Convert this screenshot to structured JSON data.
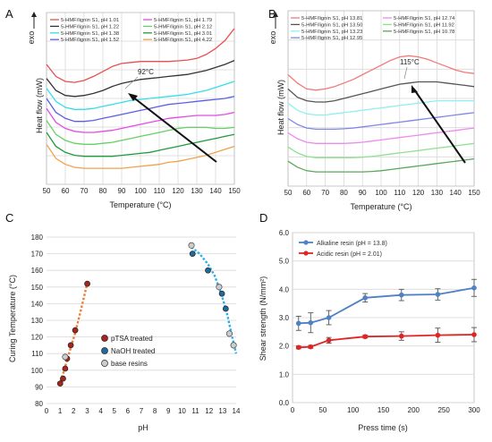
{
  "chart_data": [
    {
      "panel": "A",
      "type": "line",
      "xlabel": "Temperature (°C)",
      "ylabel": "Heat flow (mW)",
      "exo_label": "exo",
      "xlim": [
        50,
        150
      ],
      "xticks": [
        50,
        60,
        70,
        80,
        90,
        100,
        110,
        120,
        130,
        140,
        150
      ],
      "annotation": "92°C",
      "series": [
        {
          "name": "5-HMF/lignin S1, pH 1.01",
          "color": "#e8504f",
          "x": [
            50,
            55,
            60,
            65,
            70,
            75,
            80,
            85,
            90,
            95,
            100,
            105,
            110,
            115,
            120,
            125,
            130,
            135,
            140,
            145,
            150
          ],
          "y": [
            8.6,
            8.0,
            7.75,
            7.7,
            7.8,
            8.0,
            8.25,
            8.5,
            8.65,
            8.7,
            8.75,
            8.75,
            8.75,
            8.75,
            8.78,
            8.82,
            8.9,
            9.1,
            9.4,
            9.8,
            10.4
          ]
        },
        {
          "name": "5-HMF/lignin S1, pH 1.22",
          "color": "#333333",
          "x": [
            50,
            55,
            60,
            65,
            70,
            75,
            80,
            85,
            90,
            95,
            100,
            105,
            110,
            115,
            120,
            125,
            130,
            135,
            140,
            145,
            150
          ],
          "y": [
            7.9,
            7.3,
            7.05,
            7.0,
            7.05,
            7.15,
            7.3,
            7.5,
            7.65,
            7.75,
            7.85,
            7.9,
            7.95,
            8.0,
            8.05,
            8.1,
            8.2,
            8.3,
            8.45,
            8.6,
            8.8
          ]
        },
        {
          "name": "5-HMF/lignin S1, pH 1.38",
          "color": "#33dfe8",
          "x": [
            50,
            55,
            60,
            65,
            70,
            75,
            80,
            85,
            90,
            95,
            100,
            105,
            110,
            115,
            120,
            125,
            130,
            135,
            140,
            145,
            150
          ],
          "y": [
            7.4,
            6.75,
            6.45,
            6.35,
            6.35,
            6.4,
            6.5,
            6.6,
            6.7,
            6.8,
            6.85,
            6.9,
            6.95,
            7.0,
            7.05,
            7.1,
            7.2,
            7.3,
            7.45,
            7.6,
            7.75
          ]
        },
        {
          "name": "5-HMF/lignin S1, pH 1.52",
          "color": "#5a5fe6",
          "x": [
            50,
            55,
            60,
            65,
            70,
            75,
            80,
            85,
            90,
            95,
            100,
            105,
            110,
            115,
            120,
            125,
            130,
            135,
            140,
            145,
            150
          ],
          "y": [
            6.9,
            6.2,
            5.9,
            5.75,
            5.75,
            5.8,
            5.9,
            6.0,
            6.1,
            6.2,
            6.3,
            6.4,
            6.5,
            6.6,
            6.65,
            6.7,
            6.75,
            6.8,
            6.85,
            6.9,
            7.0
          ]
        },
        {
          "name": "5-HMF/lignin S1, pH 1.79",
          "color": "#e44ae4",
          "x": [
            50,
            55,
            60,
            65,
            70,
            75,
            80,
            85,
            90,
            95,
            100,
            105,
            110,
            115,
            120,
            125,
            130,
            135,
            140,
            145,
            150
          ],
          "y": [
            6.4,
            5.7,
            5.4,
            5.25,
            5.2,
            5.2,
            5.25,
            5.3,
            5.4,
            5.5,
            5.6,
            5.7,
            5.8,
            5.9,
            5.95,
            6.0,
            6.05,
            6.05,
            6.05,
            6.1,
            6.2
          ]
        },
        {
          "name": "5-HMF/lignin S1, pH 2.12",
          "color": "#66cf66",
          "x": [
            50,
            55,
            60,
            65,
            70,
            75,
            80,
            85,
            90,
            95,
            100,
            105,
            110,
            115,
            120,
            125,
            130,
            135,
            140,
            145,
            150
          ],
          "y": [
            5.8,
            5.1,
            4.8,
            4.65,
            4.6,
            4.6,
            4.65,
            4.7,
            4.8,
            4.9,
            5.0,
            5.1,
            5.2,
            5.3,
            5.4,
            5.45,
            5.45,
            5.45,
            5.4,
            5.4,
            5.45
          ]
        },
        {
          "name": "5-HMF/lignin S1, pH 3.01",
          "color": "#229a3c",
          "x": [
            50,
            55,
            60,
            65,
            70,
            75,
            80,
            85,
            90,
            95,
            100,
            105,
            110,
            115,
            120,
            125,
            130,
            135,
            140,
            145,
            150
          ],
          "y": [
            5.2,
            4.5,
            4.2,
            4.05,
            4.0,
            4.0,
            4.0,
            4.0,
            4.05,
            4.1,
            4.15,
            4.2,
            4.3,
            4.4,
            4.5,
            4.6,
            4.7,
            4.8,
            4.9,
            5.0,
            5.1
          ]
        },
        {
          "name": "5-HMF/lignin S1, pH 4.22",
          "color": "#f0a24a",
          "x": [
            50,
            55,
            60,
            65,
            70,
            75,
            80,
            85,
            90,
            95,
            100,
            105,
            110,
            115,
            120,
            125,
            130,
            135,
            140,
            145,
            150
          ],
          "y": [
            4.6,
            3.9,
            3.6,
            3.45,
            3.4,
            3.4,
            3.4,
            3.4,
            3.4,
            3.45,
            3.5,
            3.55,
            3.6,
            3.7,
            3.75,
            3.85,
            3.95,
            4.05,
            4.2,
            4.35,
            4.5
          ]
        }
      ]
    },
    {
      "panel": "B",
      "type": "line",
      "xlabel": "Temperature (°C)",
      "ylabel": "Heat flow (mW)",
      "exo_label": "exo",
      "xlim": [
        50,
        150
      ],
      "xticks": [
        50,
        60,
        70,
        80,
        90,
        100,
        110,
        120,
        130,
        140,
        150
      ],
      "annotation": "115°C",
      "series": [
        {
          "name": "5-HMF/lignin S1, pH 13.81",
          "color": "#f07a7a",
          "x": [
            50,
            55,
            60,
            65,
            70,
            75,
            80,
            85,
            90,
            95,
            100,
            105,
            110,
            115,
            120,
            125,
            130,
            135,
            140,
            145,
            150
          ],
          "y": [
            8.9,
            8.55,
            8.3,
            8.25,
            8.3,
            8.4,
            8.55,
            8.7,
            8.9,
            9.1,
            9.3,
            9.5,
            9.65,
            9.7,
            9.65,
            9.55,
            9.4,
            9.25,
            9.1,
            9.0,
            8.95
          ]
        },
        {
          "name": "5-HMF/lignin S1, pH 13.50",
          "color": "#555555",
          "x": [
            50,
            55,
            60,
            65,
            70,
            75,
            80,
            85,
            90,
            95,
            100,
            105,
            110,
            115,
            120,
            125,
            130,
            135,
            140,
            145,
            150
          ],
          "y": [
            8.3,
            7.95,
            7.8,
            7.75,
            7.75,
            7.8,
            7.9,
            8.0,
            8.1,
            8.2,
            8.3,
            8.4,
            8.5,
            8.55,
            8.6,
            8.6,
            8.6,
            8.55,
            8.5,
            8.45,
            8.4
          ]
        },
        {
          "name": "5-HMF/lignin S1, pH 13.23",
          "color": "#8ff0f0",
          "x": [
            50,
            55,
            60,
            65,
            70,
            75,
            80,
            85,
            90,
            95,
            100,
            105,
            110,
            115,
            120,
            125,
            130,
            135,
            140,
            145,
            150
          ],
          "y": [
            7.7,
            7.4,
            7.25,
            7.2,
            7.2,
            7.25,
            7.3,
            7.35,
            7.4,
            7.45,
            7.5,
            7.55,
            7.6,
            7.65,
            7.7,
            7.75,
            7.8,
            7.8,
            7.8,
            7.8,
            7.8
          ]
        },
        {
          "name": "5-HMF/lignin S1, pH 12.95",
          "color": "#7f86e8",
          "x": [
            50,
            55,
            60,
            65,
            70,
            75,
            80,
            85,
            90,
            95,
            100,
            105,
            110,
            115,
            120,
            125,
            130,
            135,
            140,
            145,
            150
          ],
          "y": [
            7.05,
            6.8,
            6.65,
            6.6,
            6.6,
            6.6,
            6.62,
            6.65,
            6.7,
            6.75,
            6.8,
            6.85,
            6.9,
            6.95,
            7.0,
            7.05,
            7.1,
            7.15,
            7.2,
            7.25,
            7.3
          ]
        },
        {
          "name": "5-HMF/lignin S1, pH 12.74",
          "color": "#ee8aee",
          "x": [
            50,
            55,
            60,
            65,
            70,
            75,
            80,
            85,
            90,
            95,
            100,
            105,
            110,
            115,
            120,
            125,
            130,
            135,
            140,
            145,
            150
          ],
          "y": [
            6.45,
            6.2,
            6.05,
            6.0,
            6.0,
            6.0,
            6.0,
            6.02,
            6.05,
            6.1,
            6.15,
            6.2,
            6.25,
            6.3,
            6.35,
            6.4,
            6.45,
            6.5,
            6.55,
            6.6,
            6.65
          ]
        },
        {
          "name": "5-HMF/lignin S1, pH 11.92",
          "color": "#8fe08f",
          "x": [
            50,
            55,
            60,
            65,
            70,
            75,
            80,
            85,
            90,
            95,
            100,
            105,
            110,
            115,
            120,
            125,
            130,
            135,
            140,
            145,
            150
          ],
          "y": [
            5.85,
            5.6,
            5.45,
            5.4,
            5.4,
            5.4,
            5.4,
            5.4,
            5.42,
            5.45,
            5.5,
            5.55,
            5.6,
            5.65,
            5.7,
            5.75,
            5.8,
            5.85,
            5.9,
            5.95,
            6.0
          ]
        },
        {
          "name": "5-HMF/lignin S1, pH 10.78",
          "color": "#5aa85a",
          "x": [
            50,
            55,
            60,
            65,
            70,
            75,
            80,
            85,
            90,
            95,
            100,
            105,
            110,
            115,
            120,
            125,
            130,
            135,
            140,
            145,
            150
          ],
          "y": [
            5.25,
            5.0,
            4.85,
            4.8,
            4.8,
            4.8,
            4.8,
            4.8,
            4.8,
            4.82,
            4.85,
            4.9,
            4.95,
            5.0,
            5.05,
            5.1,
            5.15,
            5.2,
            5.25,
            5.3,
            5.35
          ]
        }
      ]
    },
    {
      "panel": "C",
      "type": "scatter",
      "xlabel": "pH",
      "ylabel": "Curing Temperature (°C)",
      "xlim": [
        0,
        14
      ],
      "ylim": [
        80,
        180
      ],
      "xticks": [
        0,
        1,
        2,
        3,
        4,
        5,
        6,
        7,
        8,
        9,
        10,
        11,
        12,
        13,
        14
      ],
      "yticks": [
        80,
        90,
        100,
        110,
        120,
        130,
        140,
        150,
        160,
        170,
        180
      ],
      "series": [
        {
          "name": "pTSA treated",
          "color": "#a8241c",
          "points": [
            [
              1.01,
              92
            ],
            [
              1.22,
              95
            ],
            [
              1.38,
              101
            ],
            [
              1.52,
              107
            ],
            [
              1.79,
              115
            ],
            [
              2.12,
              124
            ],
            [
              3.01,
              152
            ]
          ]
        },
        {
          "name": "NaOH treated",
          "color": "#1f6aa0",
          "points": [
            [
              10.78,
              170
            ],
            [
              11.92,
              160
            ],
            [
              12.74,
              150
            ],
            [
              12.95,
              146
            ],
            [
              13.23,
              137
            ],
            [
              13.5,
              122
            ],
            [
              13.81,
              115
            ]
          ]
        },
        {
          "name": "base resins",
          "color": "#888888",
          "points": [
            [
              1.38,
              108
            ],
            [
              12.74,
              150
            ],
            [
              10.7,
              175
            ],
            [
              13.5,
              122
            ],
            [
              13.81,
              115
            ]
          ]
        }
      ],
      "fit_lines": [
        {
          "color": "#e8803a",
          "x": [
            0.95,
            1.3,
            1.7,
            2.1,
            2.5,
            3.0
          ],
          "y": [
            91,
            100,
            111,
            122,
            135,
            152
          ]
        },
        {
          "color": "#2aaee8",
          "x": [
            10.7,
            11.3,
            11.9,
            12.4,
            12.9,
            13.3,
            13.7,
            14.0
          ],
          "y": [
            174,
            170,
            164,
            157,
            146,
            135,
            120,
            110
          ]
        }
      ]
    },
    {
      "panel": "D",
      "type": "line",
      "xlabel": "Press time (s)",
      "ylabel": "Shear strength (N/mm²)",
      "xlim": [
        0,
        300
      ],
      "ylim": [
        0,
        6
      ],
      "xticks": [
        0,
        50,
        100,
        150,
        200,
        250,
        300
      ],
      "yticks": [
        "0.0",
        "1.0",
        "2.0",
        "3.0",
        "4.0",
        "5.0",
        "6.0"
      ],
      "series": [
        {
          "name": "Alkaline resin (pH = 13.8)",
          "color": "#4f81c4",
          "x": [
            10,
            30,
            60,
            120,
            180,
            240,
            300
          ],
          "y": [
            2.8,
            2.82,
            3.0,
            3.7,
            3.8,
            3.82,
            4.05
          ],
          "err": [
            0.25,
            0.35,
            0.25,
            0.15,
            0.2,
            0.2,
            0.3
          ]
        },
        {
          "name": "Acidic resin (pH = 2.01)",
          "color": "#e02424",
          "x": [
            10,
            30,
            60,
            120,
            180,
            240,
            300
          ],
          "y": [
            1.95,
            1.97,
            2.2,
            2.33,
            2.35,
            2.38,
            2.4
          ],
          "err": [
            0.05,
            0.05,
            0.1,
            0.05,
            0.15,
            0.25,
            0.25
          ]
        }
      ]
    }
  ]
}
